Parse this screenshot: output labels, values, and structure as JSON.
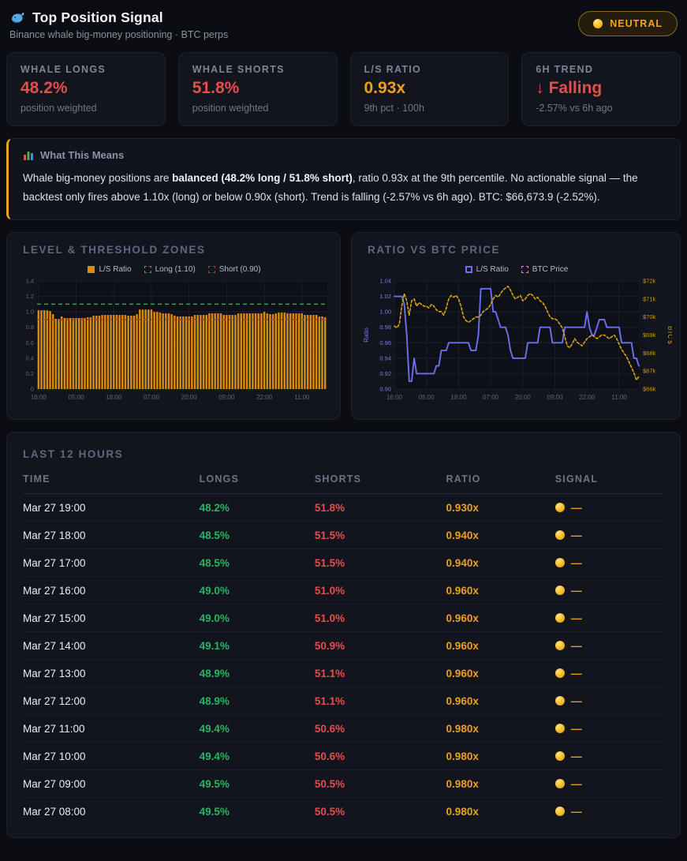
{
  "header": {
    "icon": "whale-icon",
    "title": "Top Position Signal",
    "subtitle": "Binance whale big-money positioning · BTC perps",
    "badge": {
      "label": "NEUTRAL",
      "dot_color": "#f5b81e",
      "text_color": "#f0a818"
    }
  },
  "stats": [
    {
      "label": "WHALE LONGS",
      "value": "48.2%",
      "value_color": "#e84c4c",
      "sub": "position weighted"
    },
    {
      "label": "WHALE SHORTS",
      "value": "51.8%",
      "value_color": "#e84c4c",
      "sub": "position weighted"
    },
    {
      "label": "L/S RATIO",
      "value": "0.93x",
      "value_color": "#eda019",
      "sub": "9th pct · 100h"
    },
    {
      "label": "6H TREND",
      "value": "↓ Falling",
      "value_color": "#e84c4c",
      "sub": "-2.57% vs 6h ago"
    }
  ],
  "note": {
    "icon": "bar-chart-icon",
    "title": "What This Means",
    "lead": "Whale big-money positions are ",
    "bold": "balanced (48.2% long / 51.8% short)",
    "rest": ", ratio 0.93x at the 9th percentile. No actionable signal — the backtest only fires above 1.10x (long) or below 0.90x (short). Trend is falling (-2.57% vs 6h ago). BTC: $66,673.9 (-2.52%)."
  },
  "chart_data": [
    {
      "type": "bar",
      "title": "LEVEL & THRESHOLD ZONES",
      "legend": [
        {
          "label": "L/S Ratio",
          "type": "fill",
          "color": "#d98c0e"
        },
        {
          "label": "Long (1.10)",
          "type": "dashed",
          "color": "#2fa360"
        },
        {
          "label": "Short (0.90)",
          "type": "dashed",
          "color": "#b03a3a"
        }
      ],
      "ylim": [
        0,
        1.4
      ],
      "yticks": [
        0,
        0.2,
        0.4,
        0.6,
        0.8,
        1.0,
        1.2,
        1.4
      ],
      "yticklabels": [
        "0",
        "0.2",
        "0.4",
        "0.6",
        "0.8",
        "1.0",
        "1.2",
        "1.4"
      ],
      "xticklabels": [
        "16:00",
        "05:00",
        "18:00",
        "07:00",
        "20:00",
        "09:00",
        "22:00",
        "11:00"
      ],
      "tick_indices": [
        0,
        13,
        26,
        39,
        52,
        65,
        78,
        91
      ],
      "thresholds": [
        {
          "name": "long",
          "value": 1.1,
          "color": "#2fa360"
        },
        {
          "name": "short",
          "value": 0.9,
          "color": "#b03a3a"
        }
      ],
      "values": [
        1.02,
        1.02,
        1.02,
        1.02,
        1.01,
        0.97,
        0.91,
        0.91,
        0.94,
        0.92,
        0.92,
        0.92,
        0.92,
        0.92,
        0.92,
        0.92,
        0.92,
        0.93,
        0.93,
        0.95,
        0.95,
        0.95,
        0.96,
        0.96,
        0.96,
        0.96,
        0.96,
        0.96,
        0.96,
        0.96,
        0.96,
        0.95,
        0.95,
        0.95,
        0.97,
        1.03,
        1.03,
        1.03,
        1.03,
        1.03,
        1.0,
        1.0,
        0.99,
        0.98,
        0.98,
        0.98,
        0.97,
        0.95,
        0.94,
        0.94,
        0.94,
        0.94,
        0.94,
        0.94,
        0.96,
        0.96,
        0.96,
        0.96,
        0.96,
        0.98,
        0.98,
        0.98,
        0.98,
        0.98,
        0.96,
        0.96,
        0.96,
        0.96,
        0.96,
        0.98,
        0.98,
        0.98,
        0.98,
        0.98,
        0.98,
        0.98,
        0.98,
        0.98,
        1.0,
        0.98,
        0.97,
        0.97,
        0.98,
        0.99,
        0.99,
        0.99,
        0.98,
        0.98,
        0.98,
        0.98,
        0.98,
        0.98,
        0.96,
        0.96,
        0.96,
        0.96,
        0.96,
        0.94,
        0.94,
        0.93
      ]
    },
    {
      "type": "line",
      "title": "RATIO VS BTC PRICE",
      "legend": [
        {
          "label": "L/S Ratio",
          "type": "outline",
          "color": "#6d6ff0"
        },
        {
          "label": "BTC Price",
          "type": "dashed",
          "color": "#d9a514"
        }
      ],
      "left_axis": {
        "label": "Ratio",
        "color": "#7a7de0",
        "lim": [
          0.9,
          1.04
        ],
        "ticks": [
          0.9,
          0.92,
          0.94,
          0.96,
          0.98,
          1.0,
          1.02,
          1.04
        ],
        "ticklabels": [
          "0.90",
          "0.92",
          "0.94",
          "0.96",
          "0.98",
          "1.00",
          "1.02",
          "1.04"
        ]
      },
      "right_axis": {
        "label": "BTC $",
        "color": "#d09c14",
        "lim": [
          66,
          72
        ],
        "ticks": [
          66,
          67,
          68,
          69,
          70,
          71,
          72
        ],
        "ticklabels": [
          "$66k",
          "$67k",
          "$68k",
          "$69k",
          "$70k",
          "$71k",
          "$72k"
        ]
      },
      "xticklabels": [
        "16:00",
        "05:00",
        "18:00",
        "07:00",
        "20:00",
        "09:00",
        "22:00",
        "11:00"
      ],
      "tick_indices": [
        0,
        13,
        26,
        39,
        52,
        65,
        78,
        91
      ],
      "series": [
        {
          "name": "L/S Ratio",
          "axis": "left",
          "style": "solid",
          "color": "#6d6ff0",
          "values": [
            1.02,
            1.02,
            1.02,
            1.02,
            1.01,
            0.97,
            0.91,
            0.91,
            0.94,
            0.92,
            0.92,
            0.92,
            0.92,
            0.92,
            0.92,
            0.92,
            0.92,
            0.93,
            0.93,
            0.95,
            0.95,
            0.95,
            0.96,
            0.96,
            0.96,
            0.96,
            0.96,
            0.96,
            0.96,
            0.96,
            0.96,
            0.95,
            0.95,
            0.95,
            0.97,
            1.03,
            1.03,
            1.03,
            1.03,
            1.03,
            1.0,
            1.0,
            0.99,
            0.98,
            0.98,
            0.98,
            0.97,
            0.95,
            0.94,
            0.94,
            0.94,
            0.94,
            0.94,
            0.94,
            0.96,
            0.96,
            0.96,
            0.96,
            0.96,
            0.98,
            0.98,
            0.98,
            0.98,
            0.98,
            0.96,
            0.96,
            0.96,
            0.96,
            0.96,
            0.98,
            0.98,
            0.98,
            0.98,
            0.98,
            0.98,
            0.98,
            0.98,
            0.98,
            1.0,
            0.98,
            0.97,
            0.97,
            0.98,
            0.99,
            0.99,
            0.99,
            0.98,
            0.98,
            0.98,
            0.98,
            0.98,
            0.98,
            0.96,
            0.96,
            0.96,
            0.96,
            0.96,
            0.94,
            0.94,
            0.93
          ]
        },
        {
          "name": "BTC Price",
          "axis": "right",
          "style": "dashed",
          "color": "#d9a514",
          "values": [
            69.5,
            69.4,
            69.6,
            70.6,
            71.3,
            70.9,
            70.1,
            70.9,
            71.0,
            70.6,
            70.8,
            70.7,
            70.6,
            70.6,
            70.5,
            70.7,
            70.6,
            70.4,
            70.3,
            70.3,
            70.1,
            70.5,
            71.0,
            71.2,
            71.1,
            71.2,
            71.0,
            70.6,
            70.0,
            69.8,
            69.7,
            69.8,
            69.9,
            70.0,
            70.0,
            70.1,
            70.3,
            70.4,
            70.5,
            70.7,
            71.0,
            71.2,
            71.1,
            71.3,
            71.5,
            71.6,
            71.7,
            71.5,
            71.2,
            71.0,
            71.1,
            71.2,
            70.9,
            71.0,
            71.2,
            71.3,
            71.2,
            71.0,
            71.1,
            70.9,
            70.8,
            70.6,
            70.3,
            70.0,
            69.9,
            69.9,
            69.8,
            69.6,
            69.4,
            68.9,
            68.4,
            68.3,
            68.5,
            68.8,
            68.6,
            68.5,
            68.4,
            68.6,
            68.8,
            68.9,
            69.0,
            68.9,
            68.8,
            68.9,
            69.0,
            69.0,
            68.9,
            68.8,
            68.9,
            69.0,
            68.8,
            68.5,
            68.2,
            68.0,
            67.8,
            67.5,
            67.2,
            66.9,
            66.5,
            66.7
          ]
        }
      ]
    }
  ],
  "table": {
    "title": "LAST 12 HOURS",
    "columns": [
      "TIME",
      "LONGS",
      "SHORTS",
      "RATIO",
      "SIGNAL"
    ],
    "rows": [
      {
        "time": "Mar 27 19:00",
        "longs": "48.2%",
        "shorts": "51.8%",
        "ratio": "0.930x",
        "signal": "—"
      },
      {
        "time": "Mar 27 18:00",
        "longs": "48.5%",
        "shorts": "51.5%",
        "ratio": "0.940x",
        "signal": "—"
      },
      {
        "time": "Mar 27 17:00",
        "longs": "48.5%",
        "shorts": "51.5%",
        "ratio": "0.940x",
        "signal": "—"
      },
      {
        "time": "Mar 27 16:00",
        "longs": "49.0%",
        "shorts": "51.0%",
        "ratio": "0.960x",
        "signal": "—"
      },
      {
        "time": "Mar 27 15:00",
        "longs": "49.0%",
        "shorts": "51.0%",
        "ratio": "0.960x",
        "signal": "—"
      },
      {
        "time": "Mar 27 14:00",
        "longs": "49.1%",
        "shorts": "50.9%",
        "ratio": "0.960x",
        "signal": "—"
      },
      {
        "time": "Mar 27 13:00",
        "longs": "48.9%",
        "shorts": "51.1%",
        "ratio": "0.960x",
        "signal": "—"
      },
      {
        "time": "Mar 27 12:00",
        "longs": "48.9%",
        "shorts": "51.1%",
        "ratio": "0.960x",
        "signal": "—"
      },
      {
        "time": "Mar 27 11:00",
        "longs": "49.4%",
        "shorts": "50.6%",
        "ratio": "0.980x",
        "signal": "—"
      },
      {
        "time": "Mar 27 10:00",
        "longs": "49.4%",
        "shorts": "50.6%",
        "ratio": "0.980x",
        "signal": "—"
      },
      {
        "time": "Mar 27 09:00",
        "longs": "49.5%",
        "shorts": "50.5%",
        "ratio": "0.980x",
        "signal": "—"
      },
      {
        "time": "Mar 27 08:00",
        "longs": "49.5%",
        "shorts": "50.5%",
        "ratio": "0.980x",
        "signal": "—"
      }
    ]
  },
  "theme": {
    "page_bg": "#0b0d12",
    "card_bg": "#12151e",
    "card_border": "#1d2230",
    "red": "#e84c4c",
    "green": "#27b563",
    "amber": "#eda019",
    "purple": "#6d6ff0",
    "gold": "#d9a514",
    "muted": "#6e7889"
  }
}
